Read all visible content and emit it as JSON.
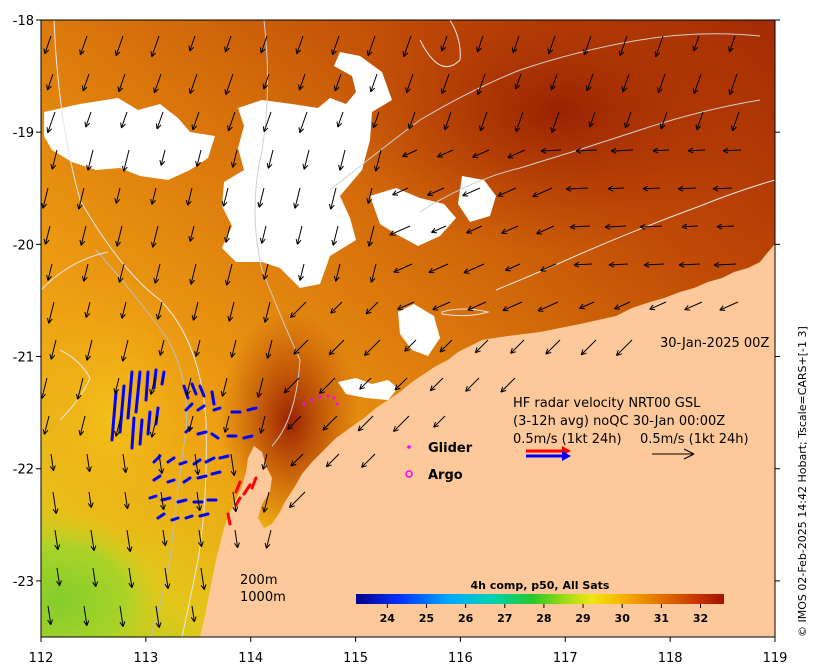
{
  "map": {
    "lon_ticks": [
      "112",
      "113",
      "114",
      "115",
      "116",
      "117",
      "118",
      "119"
    ],
    "lat_ticks": [
      "-18",
      "-19",
      "-20",
      "-21",
      "-22",
      "-23"
    ],
    "lon_range": [
      112,
      119
    ],
    "lat_range": [
      -23.5,
      -18
    ]
  },
  "annotations": {
    "date_label": "30-Jan-2025 00Z",
    "hf_line1": "HF radar velocity  NRT00 GSL",
    "hf_line2": "(3-12h avg) noQC 30-Jan 00:00Z",
    "hf_line3_left": "0.5m/s (1kt 24h)",
    "hf_line3_right": "0.5m/s (1kt 24h)"
  },
  "legend": {
    "glider_label": "Glider",
    "argo_label": "Argo",
    "glider_color": "#ff00ff",
    "argo_color": "#ff00ff"
  },
  "bathymetry": {
    "label_200": "200m",
    "label_1000": "1000m"
  },
  "colorbar": {
    "title": "4h comp, p50, All Sats",
    "ticks": [
      "24",
      "25",
      "26",
      "27",
      "28",
      "29",
      "30",
      "31",
      "32"
    ],
    "range": [
      23.2,
      32.6
    ]
  },
  "credit": "© IMOS 02-Feb-2025 14:42 Hobart; Tscale=CARS+[-1 3]",
  "colors": {
    "land": "#fdc99a",
    "cloud": "#ffffff",
    "radar_blue": "#0000ff",
    "radar_red": "#ff0000"
  }
}
